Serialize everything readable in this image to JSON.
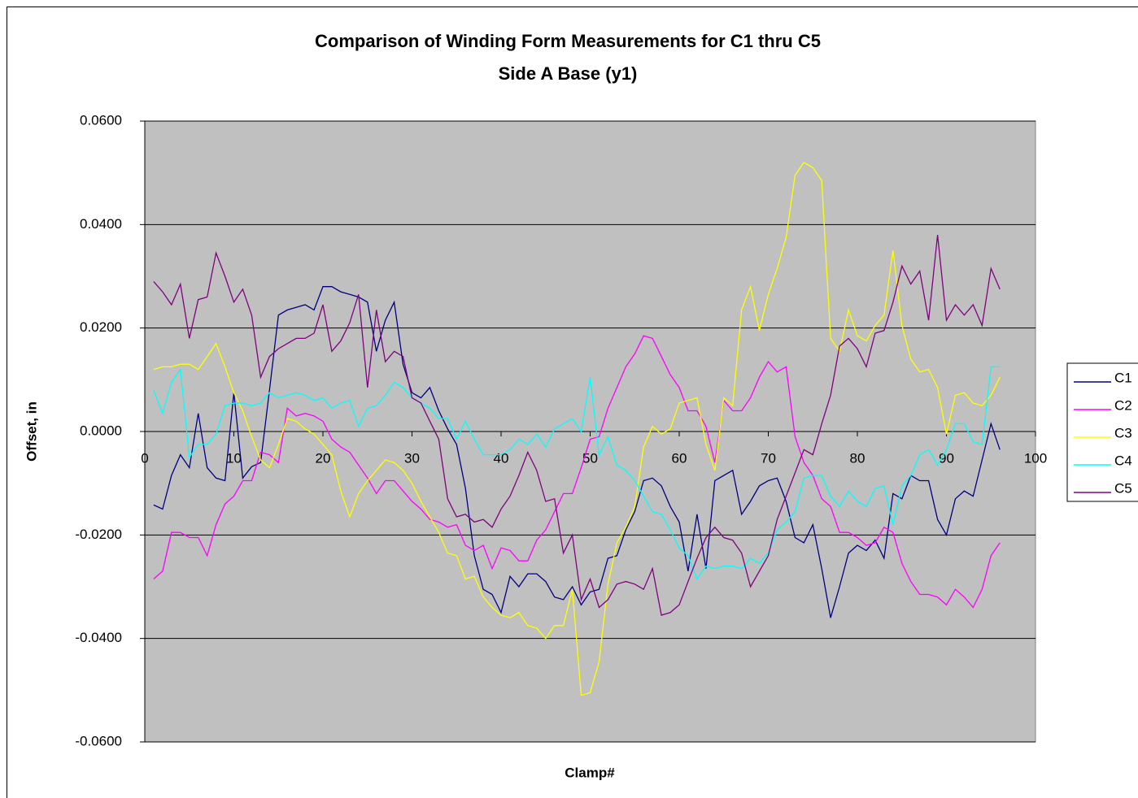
{
  "chart_data": {
    "type": "line",
    "title": "Comparison of Winding Form Measurements  for C1 thru C5",
    "subtitle": "Side A Base (y1)",
    "x_label": "Clamp#",
    "y_label": "Offset, in",
    "xlim": [
      0,
      100
    ],
    "xticks": [
      0,
      10,
      20,
      30,
      40,
      50,
      60,
      70,
      80,
      90,
      100
    ],
    "ylim": [
      -0.06,
      0.06
    ],
    "yticks": [
      {
        "value": -0.06,
        "label": "-0.0600"
      },
      {
        "value": -0.04,
        "label": "-0.0400"
      },
      {
        "value": -0.02,
        "label": "-0.0200"
      },
      {
        "value": 0,
        "label": "0.0000"
      },
      {
        "value": 0.02,
        "label": "0.0200"
      },
      {
        "value": 0.04,
        "label": "0.0400"
      },
      {
        "value": 0.06,
        "label": "0.0600"
      }
    ],
    "grid": true,
    "legend": "right",
    "x": [
      1,
      2,
      3,
      4,
      5,
      6,
      7,
      8,
      9,
      10,
      11,
      12,
      13,
      14,
      15,
      16,
      17,
      18,
      19,
      20,
      21,
      22,
      23,
      24,
      25,
      26,
      27,
      28,
      29,
      30,
      31,
      32,
      33,
      34,
      35,
      36,
      37,
      38,
      39,
      40,
      41,
      42,
      43,
      44,
      45,
      46,
      47,
      48,
      49,
      50,
      51,
      52,
      53,
      54,
      55,
      56,
      57,
      58,
      59,
      60,
      61,
      62,
      63,
      64,
      65,
      66,
      67,
      68,
      69,
      70,
      71,
      72,
      73,
      74,
      75,
      76,
      77,
      78,
      79,
      80,
      81,
      82,
      83,
      84,
      85,
      86,
      87,
      88,
      89,
      90,
      91,
      92,
      93,
      94,
      95,
      96
    ],
    "series": [
      {
        "name": "C1",
        "color": "#000080",
        "values": [
          -0.0142,
          -0.015,
          -0.0085,
          -0.0045,
          -0.007,
          0.0035,
          -0.007,
          -0.009,
          -0.0095,
          0.0075,
          -0.009,
          -0.0068,
          -0.006,
          0.008,
          0.0225,
          0.0235,
          0.024,
          0.0245,
          0.0235,
          0.028,
          0.028,
          0.027,
          0.0265,
          0.026,
          0.025,
          0.0155,
          0.0215,
          0.025,
          0.013,
          0.0075,
          0.0065,
          0.0085,
          0.004,
          0.0005,
          -0.0025,
          -0.011,
          -0.024,
          -0.0305,
          -0.0315,
          -0.035,
          -0.028,
          -0.03,
          -0.0275,
          -0.0275,
          -0.029,
          -0.032,
          -0.0325,
          -0.03,
          -0.0335,
          -0.031,
          -0.0305,
          -0.0245,
          -0.024,
          -0.019,
          -0.0155,
          -0.0095,
          -0.009,
          -0.0105,
          -0.0145,
          -0.0175,
          -0.027,
          -0.016,
          -0.0265,
          -0.0095,
          -0.0085,
          -0.0075,
          -0.016,
          -0.0135,
          -0.0105,
          -0.0095,
          -0.009,
          -0.0135,
          -0.0205,
          -0.0215,
          -0.018,
          -0.0265,
          -0.036,
          -0.03,
          -0.0235,
          -0.022,
          -0.023,
          -0.021,
          -0.0245,
          -0.012,
          -0.013,
          -0.0085,
          -0.0095,
          -0.0095,
          -0.017,
          -0.02,
          -0.013,
          -0.0115,
          -0.0125,
          -0.0055,
          0.0015,
          -0.0035
        ]
      },
      {
        "name": "C2",
        "color": "#ff00ff",
        "values": [
          -0.0285,
          -0.027,
          -0.0195,
          -0.0195,
          -0.0205,
          -0.0205,
          -0.024,
          -0.018,
          -0.014,
          -0.0125,
          -0.0095,
          -0.0095,
          -0.004,
          -0.0045,
          -0.006,
          0.0045,
          0.003,
          0.0035,
          0.003,
          0.002,
          -0.0015,
          -0.003,
          -0.004,
          -0.0065,
          -0.009,
          -0.012,
          -0.0095,
          -0.0095,
          -0.0115,
          -0.0135,
          -0.015,
          -0.017,
          -0.0175,
          -0.0185,
          -0.018,
          -0.022,
          -0.023,
          -0.022,
          -0.0265,
          -0.0225,
          -0.023,
          -0.025,
          -0.025,
          -0.021,
          -0.019,
          -0.0155,
          -0.012,
          -0.012,
          -0.007,
          -0.0015,
          -0.001,
          0.0045,
          0.0085,
          0.0125,
          0.015,
          0.0185,
          0.018,
          0.0145,
          0.011,
          0.0085,
          0.004,
          0.004,
          0.001,
          -0.006,
          0.006,
          0.004,
          0.004,
          0.0065,
          0.0105,
          0.0135,
          0.0115,
          0.0125,
          -0.001,
          -0.006,
          -0.0085,
          -0.013,
          -0.0145,
          -0.0195,
          -0.0195,
          -0.0205,
          -0.022,
          -0.0215,
          -0.0185,
          -0.0195,
          -0.0255,
          -0.029,
          -0.0315,
          -0.0315,
          -0.032,
          -0.0335,
          -0.0305,
          -0.032,
          -0.034,
          -0.0305,
          -0.024,
          -0.0215
        ]
      },
      {
        "name": "C3",
        "color": "#ffff00",
        "values": [
          0.012,
          0.0125,
          0.0125,
          0.013,
          0.013,
          0.012,
          0.0145,
          0.017,
          0.0125,
          0.0075,
          0.004,
          -0.001,
          -0.0055,
          -0.007,
          -0.0025,
          0.0025,
          0.002,
          0.0005,
          -0.0005,
          -0.0025,
          -0.0045,
          -0.0115,
          -0.0165,
          -0.012,
          -0.0095,
          -0.0075,
          -0.0055,
          -0.006,
          -0.0075,
          -0.01,
          -0.0135,
          -0.0165,
          -0.0195,
          -0.0235,
          -0.024,
          -0.0285,
          -0.028,
          -0.032,
          -0.034,
          -0.0355,
          -0.036,
          -0.035,
          -0.0375,
          -0.038,
          -0.04,
          -0.0375,
          -0.0375,
          -0.0305,
          -0.051,
          -0.0505,
          -0.0445,
          -0.0295,
          -0.0215,
          -0.0185,
          -0.0145,
          -0.003,
          0.001,
          -0.0005,
          0.0005,
          0.0055,
          0.006,
          0.0065,
          -0.0025,
          -0.0075,
          0.0065,
          0.005,
          0.0235,
          0.028,
          0.0195,
          0.0265,
          0.0315,
          0.0375,
          0.0495,
          0.052,
          0.051,
          0.0485,
          0.018,
          0.0155,
          0.0235,
          0.0185,
          0.0175,
          0.0205,
          0.0225,
          0.035,
          0.0205,
          0.014,
          0.0115,
          0.012,
          0.0085,
          -0.0005,
          0.007,
          0.0075,
          0.0055,
          0.005,
          0.007,
          0.0105
        ]
      },
      {
        "name": "C4",
        "color": "#00ffff",
        "values": [
          0.008,
          0.0035,
          0.0095,
          0.012,
          -0.005,
          -0.0025,
          -0.0025,
          -0.0005,
          0.005,
          0.0055,
          0.0055,
          0.005,
          0.0055,
          0.0075,
          0.0065,
          0.007,
          0.0075,
          0.007,
          0.006,
          0.0065,
          0.0045,
          0.0055,
          0.006,
          0.001,
          0.0045,
          0.005,
          0.007,
          0.0095,
          0.0085,
          0.0065,
          0.0055,
          0.0045,
          0.0025,
          0.0025,
          -0.0015,
          0.002,
          -0.0015,
          -0.0045,
          -0.0045,
          -0.0045,
          -0.0035,
          -0.0015,
          -0.0025,
          -0.0005,
          -0.003,
          0.0005,
          0.0015,
          0.0025,
          0.0,
          0.0105,
          -0.0045,
          -0.001,
          -0.0065,
          -0.0075,
          -0.0095,
          -0.0125,
          -0.0155,
          -0.016,
          -0.019,
          -0.0225,
          -0.024,
          -0.0285,
          -0.026,
          -0.0265,
          -0.026,
          -0.026,
          -0.0265,
          -0.0245,
          -0.0255,
          -0.0235,
          -0.019,
          -0.0175,
          -0.0155,
          -0.009,
          -0.0085,
          -0.0085,
          -0.0125,
          -0.0145,
          -0.0115,
          -0.0135,
          -0.0145,
          -0.011,
          -0.0105,
          -0.018,
          -0.0105,
          -0.0085,
          -0.0045,
          -0.0035,
          -0.0065,
          -0.0035,
          0.0015,
          0.0015,
          -0.002,
          -0.0025,
          0.0125,
          0.0125
        ]
      },
      {
        "name": "C5",
        "color": "#800080",
        "values": [
          0.029,
          0.027,
          0.0245,
          0.0285,
          0.018,
          0.0255,
          0.026,
          0.0345,
          0.03,
          0.025,
          0.0275,
          0.0225,
          0.0105,
          0.0145,
          0.016,
          0.017,
          0.018,
          0.018,
          0.019,
          0.0245,
          0.0155,
          0.0175,
          0.021,
          0.0265,
          0.0085,
          0.0235,
          0.0135,
          0.0155,
          0.0145,
          0.0065,
          0.0055,
          0.002,
          -0.0015,
          -0.013,
          -0.0165,
          -0.016,
          -0.0175,
          -0.017,
          -0.0185,
          -0.015,
          -0.0125,
          -0.0085,
          -0.004,
          -0.0075,
          -0.0135,
          -0.013,
          -0.0235,
          -0.02,
          -0.0325,
          -0.0285,
          -0.034,
          -0.0325,
          -0.0295,
          -0.029,
          -0.0295,
          -0.0305,
          -0.0265,
          -0.0355,
          -0.035,
          -0.0335,
          -0.029,
          -0.0245,
          -0.0205,
          -0.0185,
          -0.0205,
          -0.021,
          -0.0235,
          -0.03,
          -0.027,
          -0.024,
          -0.017,
          -0.0125,
          -0.008,
          -0.0035,
          -0.0045,
          0.0015,
          0.007,
          0.0165,
          0.018,
          0.016,
          0.0125,
          0.019,
          0.0195,
          0.025,
          0.032,
          0.0285,
          0.031,
          0.0215,
          0.038,
          0.0215,
          0.0245,
          0.0225,
          0.0245,
          0.0205,
          0.0315,
          0.0275
        ]
      }
    ]
  }
}
